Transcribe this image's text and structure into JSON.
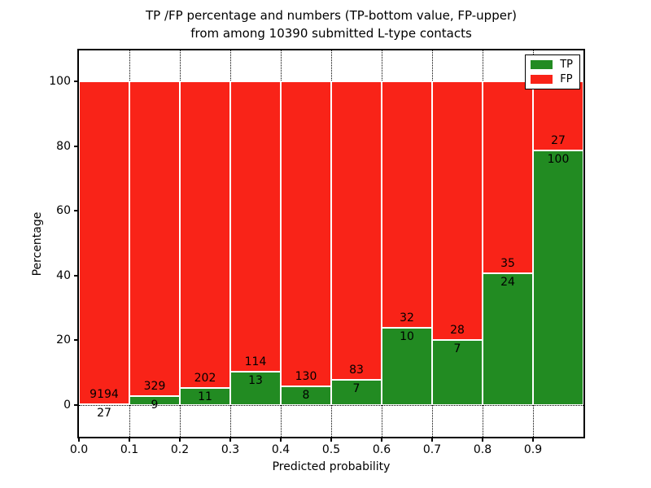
{
  "title": {
    "line1": "TP /FP percentage and numbers (TP-bottom value, FP-upper)",
    "line2": "from among 10390 submitted L-type contacts"
  },
  "axes": {
    "xlabel": "Predicted probability",
    "ylabel": "Percentage",
    "x_tick_labels": [
      "0.0",
      "0.1",
      "0.2",
      "0.3",
      "0.4",
      "0.5",
      "0.6",
      "0.7",
      "0.8",
      "0.9"
    ],
    "y_tick_labels": [
      "0",
      "20",
      "40",
      "60",
      "80",
      "100"
    ]
  },
  "legend": {
    "items": [
      {
        "label": "TP",
        "color": "#228b22"
      },
      {
        "label": "FP",
        "color": "#f92318"
      }
    ]
  },
  "chart_data": {
    "type": "bar",
    "stacked": true,
    "title": "TP /FP percentage and numbers (TP-bottom value, FP-upper) from among 10390 submitted L-type contacts",
    "xlabel": "Predicted probability",
    "ylabel": "Percentage",
    "xlim": [
      0.0,
      1.0
    ],
    "ylim": [
      -10.5,
      110
    ],
    "grid": "dotted-black-below-bars",
    "bar_edge_color": "#ffffff",
    "legend_position": "upper right",
    "total_submitted": 10390,
    "categories": [
      "0.0-0.1",
      "0.1-0.2",
      "0.2-0.3",
      "0.3-0.4",
      "0.4-0.5",
      "0.5-0.6",
      "0.6-0.7",
      "0.7-0.8",
      "0.8-0.9",
      "0.9-1.0"
    ],
    "series": [
      {
        "name": "TP",
        "color": "#228b22",
        "counts": [
          27,
          9,
          11,
          13,
          8,
          7,
          10,
          7,
          24,
          100
        ]
      },
      {
        "name": "FP",
        "color": "#f92318",
        "counts": [
          9194,
          329,
          202,
          114,
          130,
          83,
          32,
          28,
          35,
          27
        ]
      }
    ],
    "tp_percent_of_bin": [
      0.29,
      2.66,
      5.16,
      10.24,
      5.8,
      7.78,
      23.81,
      20.0,
      40.68,
      78.74
    ],
    "bars_total_percent": 100
  }
}
